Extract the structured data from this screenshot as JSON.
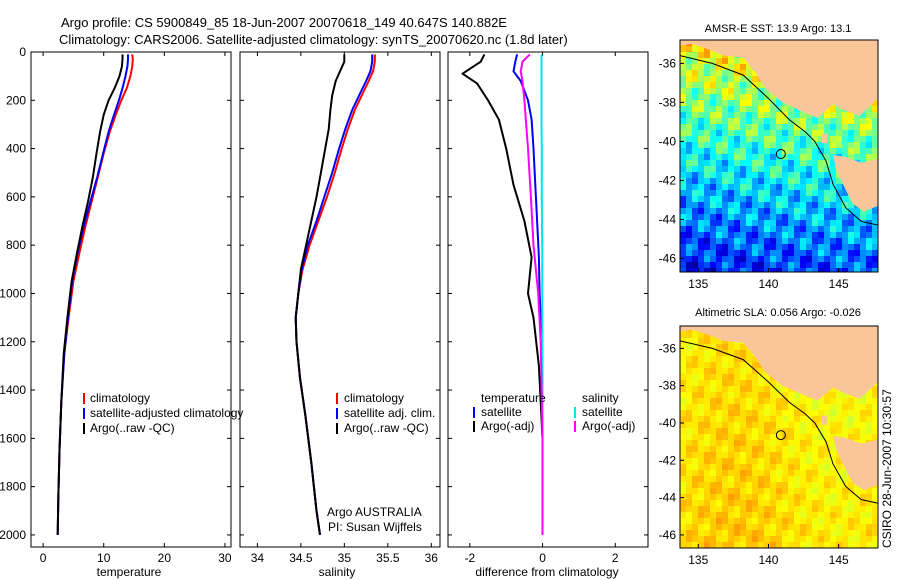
{
  "header": {
    "line1": "Argo profile: CS 5900849_85 18-Jun-2007 20070618_149 40.647S 140.882E",
    "line2": "Climatology: CARS2006. Satellite-adjusted climatology: synTS_20070620.nc (1.8d later)"
  },
  "side_label": "CSIRO 28-Jun-2007 10:30:57",
  "colors": {
    "clim": "#ff0000",
    "sat": "#0000ff",
    "argo": "#000000",
    "sal_sat": "#00e5ee",
    "sal_argo": "#ff00ff",
    "land": "#f9c69a",
    "frame": "#000000"
  },
  "panels": {
    "temp": {
      "xlabel": "temperature",
      "legend": [
        "climatology",
        "satellite-adjusted climatology",
        "Argo(..raw -QC)"
      ]
    },
    "sal": {
      "xlabel": "salinity",
      "legend": [
        "climatology",
        "satellite adj. clim.",
        "Argo(..raw -QC)"
      ],
      "note1": "Argo AUSTRALIA",
      "note2": "PI: Susan Wijffels"
    },
    "diff": {
      "xlabel": "difference from climatology",
      "legend_temp_head": "temperature",
      "legend_temp": [
        "satellite",
        "Argo(-adj)"
      ],
      "legend_sal_head": "salinity",
      "legend_sal": [
        "satellite",
        "Argo(-adj)"
      ]
    },
    "sst_map": {
      "title": "AMSR-E SST: 13.9 Argo: 13.1"
    },
    "sla_map": {
      "title": "Altimetric SLA: 0.056 Argo: -0.026"
    }
  },
  "chart_data": [
    {
      "type": "line",
      "panel": "temperature profile",
      "xlabel": "temperature",
      "xlim": [
        -2,
        31
      ],
      "xticks": [
        0,
        10,
        20,
        30
      ],
      "ylim": [
        2050,
        0
      ],
      "yticks": [
        0,
        200,
        400,
        600,
        800,
        1000,
        1200,
        1400,
        1600,
        1800,
        2000
      ],
      "series": [
        {
          "name": "climatology",
          "x": [
            14.7,
            14.8,
            14.7,
            14.4,
            13.8,
            12.9,
            12.0,
            11.0,
            10.0,
            9.0,
            8.0,
            7.0,
            6.0,
            5.0,
            4.2,
            3.5,
            3.0,
            2.7,
            2.5,
            2.4
          ],
          "y": [
            10,
            30,
            60,
            100,
            150,
            200,
            260,
            330,
            420,
            520,
            620,
            720,
            830,
            950,
            1100,
            1250,
            1450,
            1650,
            1850,
            2000
          ]
        },
        {
          "name": "satellite-adjusted climatology",
          "x": [
            14.0,
            14.0,
            13.9,
            13.6,
            13.1,
            12.5,
            11.7,
            10.8,
            9.9,
            8.9,
            7.8,
            6.7,
            5.7,
            4.8,
            4.1,
            3.5,
            3.0,
            2.7,
            2.5,
            2.4
          ],
          "y": [
            10,
            30,
            60,
            100,
            150,
            200,
            260,
            330,
            420,
            520,
            620,
            720,
            830,
            950,
            1100,
            1250,
            1450,
            1650,
            1850,
            2000
          ]
        },
        {
          "name": "Argo(..raw -QC)",
          "x": [
            13.1,
            13.1,
            13.0,
            12.6,
            11.8,
            10.8,
            10.0,
            9.4,
            8.8,
            8.2,
            7.4,
            6.5,
            5.6,
            4.7,
            4.0,
            3.4,
            3.0,
            2.7,
            2.5,
            2.4
          ],
          "y": [
            10,
            30,
            60,
            100,
            150,
            200,
            260,
            330,
            420,
            520,
            620,
            720,
            830,
            950,
            1100,
            1250,
            1450,
            1650,
            1850,
            2000
          ]
        }
      ]
    },
    {
      "type": "line",
      "panel": "salinity profile",
      "xlabel": "salinity",
      "xlim": [
        33.8,
        36.1
      ],
      "xticks": [
        34,
        34.5,
        35,
        35.5,
        36
      ],
      "ylim": [
        2050,
        0
      ],
      "yticks": [
        0,
        200,
        400,
        600,
        800,
        1000,
        1200,
        1400,
        1600,
        1800,
        2000
      ],
      "series": [
        {
          "name": "climatology",
          "x": [
            35.35,
            35.35,
            35.33,
            35.28,
            35.2,
            35.12,
            35.04,
            34.97,
            34.89,
            34.8,
            34.7,
            34.6,
            34.52,
            34.47,
            34.44,
            34.45,
            34.49,
            34.55,
            34.62,
            34.68,
            34.72
          ],
          "y": [
            10,
            40,
            80,
            120,
            180,
            240,
            320,
            400,
            500,
            600,
            700,
            800,
            900,
            1000,
            1100,
            1200,
            1350,
            1500,
            1700,
            1900,
            2000
          ]
        },
        {
          "name": "satellite adj. clim.",
          "x": [
            35.32,
            35.32,
            35.3,
            35.25,
            35.17,
            35.09,
            35.01,
            34.94,
            34.86,
            34.77,
            34.68,
            34.58,
            34.51,
            34.47,
            34.44,
            34.45,
            34.49,
            34.55,
            34.62,
            34.68,
            34.72
          ],
          "y": [
            10,
            40,
            80,
            120,
            180,
            240,
            320,
            400,
            500,
            600,
            700,
            800,
            900,
            1000,
            1100,
            1200,
            1350,
            1500,
            1700,
            1900,
            2000
          ]
        },
        {
          "name": "Argo(..raw -QC)",
          "x": [
            35.0,
            35.0,
            34.95,
            34.9,
            34.86,
            34.84,
            34.82,
            34.78,
            34.73,
            34.68,
            34.62,
            34.56,
            34.5,
            34.47,
            34.44,
            34.45,
            34.49,
            34.55,
            34.62,
            34.68,
            34.72
          ],
          "y": [
            10,
            40,
            80,
            120,
            180,
            240,
            320,
            400,
            500,
            600,
            700,
            800,
            900,
            1000,
            1100,
            1200,
            1350,
            1500,
            1700,
            1900,
            2000
          ]
        }
      ]
    },
    {
      "type": "line",
      "panel": "difference from climatology",
      "xlabel": "difference from climatology",
      "xlim": [
        -2.6,
        2.9
      ],
      "xticks": [
        -2,
        0,
        2
      ],
      "ylim": [
        2050,
        0
      ],
      "yticks": [
        0,
        200,
        400,
        600,
        800,
        1000,
        1200,
        1400,
        1600,
        1800,
        2000
      ],
      "series": [
        {
          "name": "temperature satellite",
          "x": [
            -0.7,
            -0.75,
            -0.8,
            -0.6,
            -0.4,
            -0.3,
            -0.25,
            -0.2,
            -0.15,
            -0.1,
            -0.08,
            -0.05,
            -0.02,
            0,
            0
          ],
          "y": [
            10,
            40,
            80,
            120,
            200,
            280,
            400,
            550,
            700,
            850,
            1000,
            1100,
            1300,
            1600,
            2000
          ]
        },
        {
          "name": "temperature Argo(-adj)",
          "x": [
            -1.6,
            -1.7,
            -2.2,
            -1.8,
            -1.5,
            -1.2,
            -1.0,
            -0.8,
            -0.5,
            -0.3,
            -0.4,
            -0.25,
            -0.1,
            0,
            0
          ],
          "y": [
            10,
            40,
            90,
            130,
            200,
            280,
            400,
            550,
            700,
            850,
            1000,
            1100,
            1300,
            1600,
            2000
          ]
        },
        {
          "name": "salinity satellite",
          "x": [
            -0.03,
            -0.03,
            -0.03,
            -0.03,
            -0.03,
            -0.03,
            -0.02,
            -0.02,
            -0.01,
            -0.01,
            0,
            0,
            0
          ],
          "y": [
            10,
            40,
            80,
            120,
            200,
            300,
            400,
            600,
            800,
            1000,
            1200,
            1600,
            2000
          ]
        },
        {
          "name": "salinity Argo(-adj)",
          "x": [
            -0.35,
            -0.55,
            -0.6,
            -0.55,
            -0.5,
            -0.45,
            -0.4,
            -0.32,
            -0.25,
            -0.12,
            -0.05,
            0,
            0
          ],
          "y": [
            10,
            40,
            80,
            120,
            200,
            300,
            400,
            600,
            800,
            1000,
            1200,
            1600,
            2000
          ]
        }
      ]
    },
    {
      "type": "heatmap",
      "panel": "AMSR-E SST map",
      "title": "AMSR-E SST: 13.9 Argo: 13.1",
      "xlim": [
        133.7,
        147.8
      ],
      "ylim": [
        -46.7,
        -34.8
      ],
      "xticks": [
        135,
        140,
        145
      ],
      "yticks": [
        -36,
        -38,
        -40,
        -42,
        -44,
        -46
      ],
      "float_position": {
        "lon": 140.882,
        "lat": -40.647
      }
    },
    {
      "type": "heatmap",
      "panel": "Altimetric SLA map",
      "title": "Altimetric SLA: 0.056 Argo: -0.026",
      "xlim": [
        133.7,
        147.8
      ],
      "ylim": [
        -46.7,
        -34.8
      ],
      "xticks": [
        135,
        140,
        145
      ],
      "yticks": [
        -36,
        -38,
        -40,
        -42,
        -44,
        -46
      ],
      "float_position": {
        "lon": 140.882,
        "lat": -40.647
      }
    }
  ]
}
